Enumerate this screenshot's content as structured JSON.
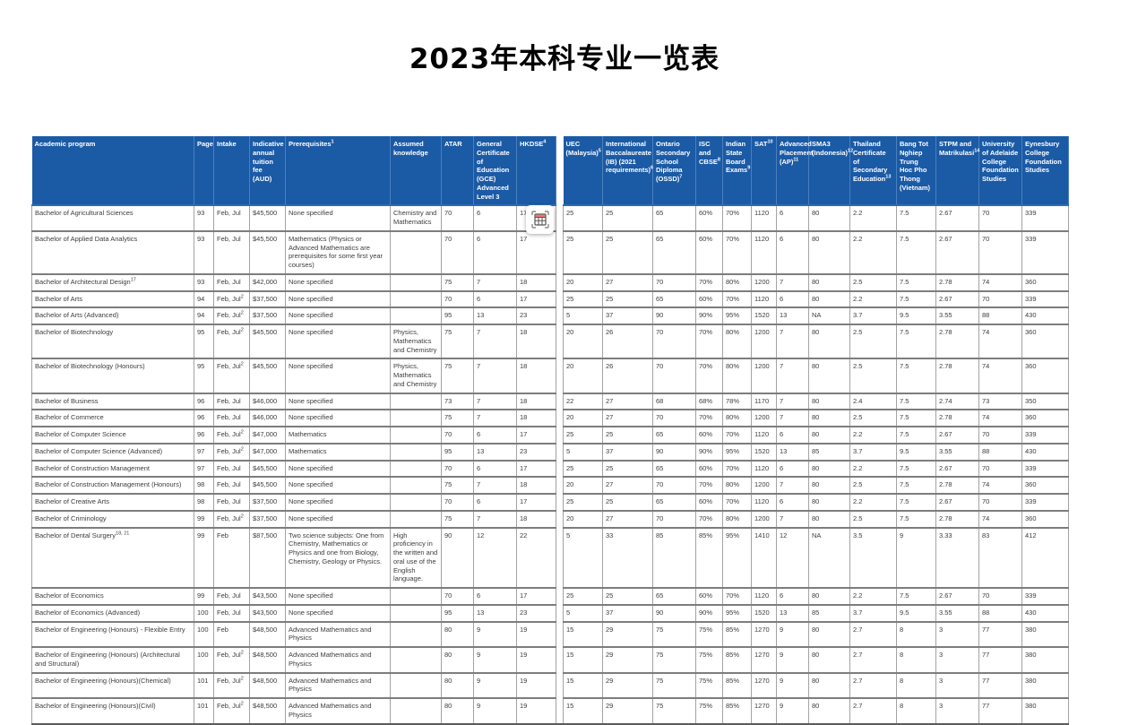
{
  "title": "2023年本科专业一览表",
  "colors": {
    "header_bg": "#1b5aa5",
    "capture_icon_accent": "#f0776b"
  },
  "capture_tool": {
    "name": "capture-table"
  },
  "table": {
    "columns": [
      {
        "key": "program",
        "label": "Academic program",
        "sup": ""
      },
      {
        "key": "page",
        "label": "Page",
        "sup": ""
      },
      {
        "key": "intake",
        "label": "Intake",
        "sup": ""
      },
      {
        "key": "fee",
        "label": "Indicative annual tuition fee (AUD)",
        "sup": ""
      },
      {
        "key": "prereq",
        "label": "Prerequisites",
        "sup": "1"
      },
      {
        "key": "assumed",
        "label": "Assumed knowledge",
        "sup": ""
      },
      {
        "key": "atar",
        "label": "ATAR",
        "sup": ""
      },
      {
        "key": "gce",
        "label": "General Certificate of Education (GCE) Advanced Level 3",
        "sup": ""
      },
      {
        "key": "hkdse",
        "label": "HKDSE",
        "sup": "4"
      },
      {
        "key": "uec",
        "label": "UEC (Malaysia)",
        "sup": "5"
      },
      {
        "key": "ib",
        "label": "International Baccalaureate (IB) (2021 requirements)",
        "sup": "6"
      },
      {
        "key": "ossd",
        "label": "Ontario Secondary School Diploma (OSSD)",
        "sup": "7"
      },
      {
        "key": "isc",
        "label": "ISC and CBSE",
        "sup": "8"
      },
      {
        "key": "indian",
        "label": "Indian State Board Exams",
        "sup": "9"
      },
      {
        "key": "sat",
        "label": "SAT",
        "sup": "10"
      },
      {
        "key": "ap",
        "label": "Advanced Placement (AP)",
        "sup": "11"
      },
      {
        "key": "sma3",
        "label": "SMA3 (Indonesia)",
        "sup": "12"
      },
      {
        "key": "thailand",
        "label": "Thailand Certificate of Secondary Education",
        "sup": "13"
      },
      {
        "key": "vietnam",
        "label": "Bang Tot Nghiep Trung Hoc Pho Thong (Vietnam)",
        "sup": ""
      },
      {
        "key": "stpm",
        "label": "STPM and Matrikulasi",
        "sup": "14"
      },
      {
        "key": "uoa_foundation",
        "label": "University of Adelaide College Foundation Studies",
        "sup": ""
      },
      {
        "key": "eynesbury",
        "label": "Eynesbury College Foundation Studies",
        "sup": ""
      }
    ],
    "rows": [
      {
        "program": "Bachelor of Agricultural Sciences",
        "program_sup": "",
        "page": "93",
        "intake": "Feb, Jul",
        "intake_sup": "",
        "fee": "$45,500",
        "prereq": "None specified",
        "assumed": "Chemistry and Mathematics",
        "atar": "70",
        "gce": "6",
        "hkdse": "17",
        "uec": "25",
        "ib": "25",
        "ossd": "65",
        "isc": "60%",
        "indian": "70%",
        "sat": "1120",
        "ap": "6",
        "sma3": "80",
        "thailand": "2.2",
        "vietnam": "7.5",
        "stpm": "2.67",
        "uoa_foundation": "70",
        "eynesbury": "339"
      },
      {
        "program": "Bachelor of Applied Data Analytics",
        "program_sup": "",
        "page": "93",
        "intake": "Feb, Jul",
        "intake_sup": "",
        "fee": "$45,500",
        "prereq": "Mathematics (Physics or Advanced Mathematics are prerequisites for some first year courses)",
        "assumed": "",
        "atar": "70",
        "gce": "6",
        "hkdse": "17",
        "uec": "25",
        "ib": "25",
        "ossd": "65",
        "isc": "60%",
        "indian": "70%",
        "sat": "1120",
        "ap": "6",
        "sma3": "80",
        "thailand": "2.2",
        "vietnam": "7.5",
        "stpm": "2.67",
        "uoa_foundation": "70",
        "eynesbury": "339"
      },
      {
        "program": "Bachelor of Architectural Design",
        "program_sup": "17",
        "page": "93",
        "intake": "Feb, Jul",
        "intake_sup": "",
        "fee": "$42,000",
        "prereq": "None specified",
        "assumed": "",
        "atar": "75",
        "gce": "7",
        "hkdse": "18",
        "uec": "20",
        "ib": "27",
        "ossd": "70",
        "isc": "70%",
        "indian": "80%",
        "sat": "1200",
        "ap": "7",
        "sma3": "80",
        "thailand": "2.5",
        "vietnam": "7.5",
        "stpm": "2.78",
        "uoa_foundation": "74",
        "eynesbury": "360"
      },
      {
        "program": "Bachelor of Arts",
        "program_sup": "",
        "page": "94",
        "intake": "Feb, Jul",
        "intake_sup": "2",
        "fee": "$37,500",
        "prereq": "None specified",
        "assumed": "",
        "atar": "70",
        "gce": "6",
        "hkdse": "17",
        "uec": "25",
        "ib": "25",
        "ossd": "65",
        "isc": "60%",
        "indian": "70%",
        "sat": "1120",
        "ap": "6",
        "sma3": "80",
        "thailand": "2.2",
        "vietnam": "7.5",
        "stpm": "2.67",
        "uoa_foundation": "70",
        "eynesbury": "339"
      },
      {
        "program": "Bachelor of Arts (Advanced)",
        "program_sup": "",
        "page": "94",
        "intake": "Feb, Jul",
        "intake_sup": "2",
        "fee": "$37,500",
        "prereq": "None specified",
        "assumed": "",
        "atar": "95",
        "gce": "13",
        "hkdse": "23",
        "uec": "5",
        "ib": "37",
        "ossd": "90",
        "isc": "90%",
        "indian": "95%",
        "sat": "1520",
        "ap": "13",
        "sma3": "NA",
        "thailand": "3.7",
        "vietnam": "9.5",
        "stpm": "3.55",
        "uoa_foundation": "88",
        "eynesbury": "430"
      },
      {
        "program": "Bachelor of Biotechnology",
        "program_sup": "",
        "page": "95",
        "intake": "Feb, Jul",
        "intake_sup": "2",
        "fee": "$45,500",
        "prereq": "None specified",
        "assumed": "Physics, Mathematics and Chemistry",
        "atar": "75",
        "gce": "7",
        "hkdse": "18",
        "uec": "20",
        "ib": "26",
        "ossd": "70",
        "isc": "70%",
        "indian": "80%",
        "sat": "1200",
        "ap": "7",
        "sma3": "80",
        "thailand": "2.5",
        "vietnam": "7.5",
        "stpm": "2.78",
        "uoa_foundation": "74",
        "eynesbury": "360"
      },
      {
        "program": "Bachelor of Biotechnology (Honours)",
        "program_sup": "",
        "page": "95",
        "intake": "Feb, Jul",
        "intake_sup": "2",
        "fee": "$45,500",
        "prereq": "None specified",
        "assumed": "Physics, Mathematics and Chemistry",
        "atar": "75",
        "gce": "7",
        "hkdse": "18",
        "uec": "20",
        "ib": "26",
        "ossd": "70",
        "isc": "70%",
        "indian": "80%",
        "sat": "1200",
        "ap": "7",
        "sma3": "80",
        "thailand": "2.5",
        "vietnam": "7.5",
        "stpm": "2.78",
        "uoa_foundation": "74",
        "eynesbury": "360"
      },
      {
        "program": "Bachelor of Business",
        "program_sup": "",
        "page": "96",
        "intake": "Feb, Jul",
        "intake_sup": "",
        "fee": "$46,000",
        "prereq": "None specified",
        "assumed": "",
        "atar": "73",
        "gce": "7",
        "hkdse": "18",
        "uec": "22",
        "ib": "27",
        "ossd": "68",
        "isc": "68%",
        "indian": "78%",
        "sat": "1170",
        "ap": "7",
        "sma3": "80",
        "thailand": "2.4",
        "vietnam": "7.5",
        "stpm": "2.74",
        "uoa_foundation": "73",
        "eynesbury": "350"
      },
      {
        "program": "Bachelor of Commerce",
        "program_sup": "",
        "page": "96",
        "intake": "Feb, Jul",
        "intake_sup": "",
        "fee": "$46,000",
        "prereq": "None specified",
        "assumed": "",
        "atar": "75",
        "gce": "7",
        "hkdse": "18",
        "uec": "20",
        "ib": "27",
        "ossd": "70",
        "isc": "70%",
        "indian": "80%",
        "sat": "1200",
        "ap": "7",
        "sma3": "80",
        "thailand": "2.5",
        "vietnam": "7.5",
        "stpm": "2.78",
        "uoa_foundation": "74",
        "eynesbury": "360"
      },
      {
        "program": "Bachelor of Computer Science",
        "program_sup": "",
        "page": "96",
        "intake": "Feb, Jul",
        "intake_sup": "2",
        "fee": "$47,000",
        "prereq": "Mathematics",
        "assumed": "",
        "atar": "70",
        "gce": "6",
        "hkdse": "17",
        "uec": "25",
        "ib": "25",
        "ossd": "65",
        "isc": "60%",
        "indian": "70%",
        "sat": "1120",
        "ap": "6",
        "sma3": "80",
        "thailand": "2.2",
        "vietnam": "7.5",
        "stpm": "2.67",
        "uoa_foundation": "70",
        "eynesbury": "339"
      },
      {
        "program": "Bachelor of Computer Science (Advanced)",
        "program_sup": "",
        "page": "97",
        "intake": "Feb, Jul",
        "intake_sup": "2",
        "fee": "$47,000",
        "prereq": "Mathematics",
        "assumed": "",
        "atar": "95",
        "gce": "13",
        "hkdse": "23",
        "uec": "5",
        "ib": "37",
        "ossd": "90",
        "isc": "90%",
        "indian": "95%",
        "sat": "1520",
        "ap": "13",
        "sma3": "85",
        "thailand": "3.7",
        "vietnam": "9.5",
        "stpm": "3.55",
        "uoa_foundation": "88",
        "eynesbury": "430"
      },
      {
        "program": "Bachelor of Construction Management",
        "program_sup": "",
        "page": "97",
        "intake": "Feb, Jul",
        "intake_sup": "",
        "fee": "$45,500",
        "prereq": "None specified",
        "assumed": "",
        "atar": "70",
        "gce": "6",
        "hkdse": "17",
        "uec": "25",
        "ib": "25",
        "ossd": "65",
        "isc": "60%",
        "indian": "70%",
        "sat": "1120",
        "ap": "6",
        "sma3": "80",
        "thailand": "2.2",
        "vietnam": "7.5",
        "stpm": "2.67",
        "uoa_foundation": "70",
        "eynesbury": "339"
      },
      {
        "program": "Bachelor of Construction Management (Honours)",
        "program_sup": "",
        "page": "98",
        "intake": "Feb, Jul",
        "intake_sup": "",
        "fee": "$45,500",
        "prereq": "None specified",
        "assumed": "",
        "atar": "75",
        "gce": "7",
        "hkdse": "18",
        "uec": "20",
        "ib": "27",
        "ossd": "70",
        "isc": "70%",
        "indian": "80%",
        "sat": "1200",
        "ap": "7",
        "sma3": "80",
        "thailand": "2.5",
        "vietnam": "7.5",
        "stpm": "2.78",
        "uoa_foundation": "74",
        "eynesbury": "360"
      },
      {
        "program": "Bachelor of Creative Arts",
        "program_sup": "",
        "page": "98",
        "intake": "Feb, Jul",
        "intake_sup": "",
        "fee": "$37,500",
        "prereq": "None specified",
        "assumed": "",
        "atar": "70",
        "gce": "6",
        "hkdse": "17",
        "uec": "25",
        "ib": "25",
        "ossd": "65",
        "isc": "60%",
        "indian": "70%",
        "sat": "1120",
        "ap": "6",
        "sma3": "80",
        "thailand": "2.2",
        "vietnam": "7.5",
        "stpm": "2.67",
        "uoa_foundation": "70",
        "eynesbury": "339"
      },
      {
        "program": "Bachelor of Criminology",
        "program_sup": "",
        "page": "99",
        "intake": "Feb, Jul",
        "intake_sup": "2",
        "fee": "$37,500",
        "prereq": "None specified",
        "assumed": "",
        "atar": "75",
        "gce": "7",
        "hkdse": "18",
        "uec": "20",
        "ib": "27",
        "ossd": "70",
        "isc": "70%",
        "indian": "80%",
        "sat": "1200",
        "ap": "7",
        "sma3": "80",
        "thailand": "2.5",
        "vietnam": "7.5",
        "stpm": "2.78",
        "uoa_foundation": "74",
        "eynesbury": "360"
      },
      {
        "program": "Bachelor of Dental Surgery",
        "program_sup": "18, 21",
        "page": "99",
        "intake": "Feb",
        "intake_sup": "",
        "fee": "$87,500",
        "prereq": "Two science subjects: One from Chemistry, Mathematics or Physics and one from Biology, Chemistry, Geology or Physics.",
        "assumed": "High proficiency in the written and oral use of the English language.",
        "atar": "90",
        "gce": "12",
        "hkdse": "22",
        "uec": "5",
        "ib": "33",
        "ossd": "85",
        "isc": "85%",
        "indian": "95%",
        "sat": "1410",
        "ap": "12",
        "sma3": "NA",
        "thailand": "3.5",
        "vietnam": "9",
        "stpm": "3.33",
        "uoa_foundation": "83",
        "eynesbury": "412"
      },
      {
        "program": "Bachelor of Economics",
        "program_sup": "",
        "page": "99",
        "intake": "Feb, Jul",
        "intake_sup": "",
        "fee": "$43,500",
        "prereq": "None specified",
        "assumed": "",
        "atar": "70",
        "gce": "6",
        "hkdse": "17",
        "uec": "25",
        "ib": "25",
        "ossd": "65",
        "isc": "60%",
        "indian": "70%",
        "sat": "1120",
        "ap": "6",
        "sma3": "80",
        "thailand": "2.2",
        "vietnam": "7.5",
        "stpm": "2.67",
        "uoa_foundation": "70",
        "eynesbury": "339"
      },
      {
        "program": "Bachelor of Economics (Advanced)",
        "program_sup": "",
        "page": "100",
        "intake": "Feb, Jul",
        "intake_sup": "",
        "fee": "$43,500",
        "prereq": "None specified",
        "assumed": "",
        "atar": "95",
        "gce": "13",
        "hkdse": "23",
        "uec": "5",
        "ib": "37",
        "ossd": "90",
        "isc": "90%",
        "indian": "95%",
        "sat": "1520",
        "ap": "13",
        "sma3": "85",
        "thailand": "3.7",
        "vietnam": "9.5",
        "stpm": "3.55",
        "uoa_foundation": "88",
        "eynesbury": "430"
      },
      {
        "program": "Bachelor of Engineering (Honours) - Flexible Entry",
        "program_sup": "",
        "page": "100",
        "intake": "Feb",
        "intake_sup": "",
        "fee": "$48,500",
        "prereq": "Advanced Mathematics and Physics",
        "assumed": "",
        "atar": "80",
        "gce": "9",
        "hkdse": "19",
        "uec": "15",
        "ib": "29",
        "ossd": "75",
        "isc": "75%",
        "indian": "85%",
        "sat": "1270",
        "ap": "9",
        "sma3": "80",
        "thailand": "2.7",
        "vietnam": "8",
        "stpm": "3",
        "uoa_foundation": "77",
        "eynesbury": "380"
      },
      {
        "program": "Bachelor of Engineering (Honours) (Architectural and Structural)",
        "program_sup": "",
        "page": "100",
        "intake": "Feb, Jul",
        "intake_sup": "2",
        "fee": "$48,500",
        "prereq": "Advanced Mathematics and Physics",
        "assumed": "",
        "atar": "80",
        "gce": "9",
        "hkdse": "19",
        "uec": "15",
        "ib": "29",
        "ossd": "75",
        "isc": "75%",
        "indian": "85%",
        "sat": "1270",
        "ap": "9",
        "sma3": "80",
        "thailand": "2.7",
        "vietnam": "8",
        "stpm": "3",
        "uoa_foundation": "77",
        "eynesbury": "380"
      },
      {
        "program": "Bachelor of Engineering (Honours)(Chemical)",
        "program_sup": "",
        "page": "101",
        "intake": "Feb, Jul",
        "intake_sup": "2",
        "fee": "$48,500",
        "prereq": "Advanced Mathematics and Physics",
        "assumed": "",
        "atar": "80",
        "gce": "9",
        "hkdse": "19",
        "uec": "15",
        "ib": "29",
        "ossd": "75",
        "isc": "75%",
        "indian": "85%",
        "sat": "1270",
        "ap": "9",
        "sma3": "80",
        "thailand": "2.7",
        "vietnam": "8",
        "stpm": "3",
        "uoa_foundation": "77",
        "eynesbury": "380"
      },
      {
        "program": "Bachelor of Engineering (Honours)(Civil)",
        "program_sup": "",
        "page": "101",
        "intake": "Feb, Jul",
        "intake_sup": "2",
        "fee": "$48,500",
        "prereq": "Advanced Mathematics and Physics",
        "assumed": "",
        "atar": "80",
        "gce": "9",
        "hkdse": "19",
        "uec": "15",
        "ib": "29",
        "ossd": "75",
        "isc": "75%",
        "indian": "85%",
        "sat": "1270",
        "ap": "9",
        "sma3": "80",
        "thailand": "2.7",
        "vietnam": "8",
        "stpm": "3",
        "uoa_foundation": "77",
        "eynesbury": "380"
      }
    ]
  }
}
